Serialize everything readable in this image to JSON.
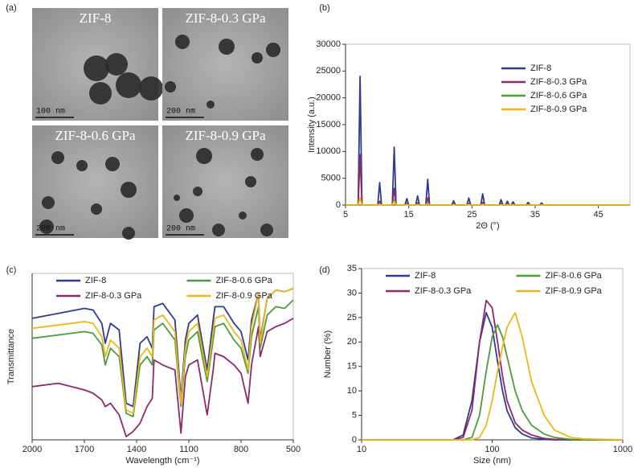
{
  "panel_labels": [
    "(a)",
    "(b)",
    "(c)",
    "(d)"
  ],
  "tem_images": [
    {
      "label": "ZIF-8",
      "scale_bar": "100 nm"
    },
    {
      "label": "ZIF-8-0.3 GPa",
      "scale_bar": "200 nm"
    },
    {
      "label": "ZIF-8-0.6 GPa",
      "scale_bar": "200 nm"
    },
    {
      "label": "ZIF-8-0.9 GPa",
      "scale_bar": "200 nm"
    }
  ],
  "chart_data": [
    {
      "type": "line",
      "x_label": "2Θ (°)",
      "y_label": "Intensity (a.u.)",
      "xlim": [
        5,
        50
      ],
      "xticks": [
        5,
        15,
        25,
        35,
        45
      ],
      "ylim": [
        0,
        30000
      ],
      "yticks": [
        0,
        5000,
        10000,
        15000,
        20000,
        25000,
        30000
      ],
      "legend": "upper right",
      "x": [
        5,
        7.0,
        7.3,
        7.6,
        10.1,
        10.4,
        10.7,
        12.4,
        12.7,
        13.0,
        14.4,
        14.7,
        15.0,
        16.1,
        16.4,
        16.7,
        17.7,
        18.0,
        18.3,
        21.8,
        22.1,
        22.4,
        24.2,
        24.5,
        24.8,
        26.4,
        26.7,
        27.0,
        29.3,
        29.6,
        29.9,
        30.3,
        30.6,
        30.9,
        31.2,
        31.5,
        31.8,
        33.6,
        33.9,
        34.2,
        35.7,
        36.0,
        36.3,
        50
      ],
      "series": [
        {
          "name": "ZIF-8",
          "color": "#2e3b8f",
          "values": [
            0,
            0,
            24000,
            0,
            0,
            4200,
            0,
            0,
            10800,
            0,
            0,
            1200,
            0,
            0,
            1700,
            0,
            0,
            4800,
            0,
            0,
            800,
            0,
            0,
            1300,
            0,
            0,
            2100,
            0,
            0,
            1000,
            0,
            0,
            700,
            0,
            0,
            600,
            0,
            0,
            500,
            0,
            0,
            400,
            0,
            0
          ]
        },
        {
          "name": "ZIF-8-0.3 GPa",
          "color": "#8b2a6b",
          "values": [
            0,
            0,
            9400,
            0,
            0,
            700,
            0,
            0,
            3100,
            0,
            0,
            300,
            0,
            0,
            400,
            0,
            0,
            1300,
            0,
            0,
            200,
            0,
            0,
            300,
            0,
            0,
            500,
            0,
            0,
            250,
            0,
            0,
            200,
            0,
            0,
            150,
            0,
            0,
            100,
            0,
            0,
            100,
            0,
            0
          ]
        },
        {
          "name": "ZIF-8-0.6 GPa",
          "color": "#4f9a3b",
          "values": [
            0,
            0,
            1300,
            0,
            0,
            200,
            0,
            0,
            1000,
            0,
            0,
            100,
            0,
            0,
            150,
            0,
            0,
            400,
            0,
            0,
            80,
            0,
            0,
            100,
            0,
            0,
            150,
            0,
            0,
            80,
            0,
            0,
            60,
            0,
            0,
            50,
            0,
            0,
            40,
            0,
            0,
            30,
            0,
            0
          ]
        },
        {
          "name": "ZIF-8-0.9 GPa",
          "color": "#e8b81e",
          "values": [
            0,
            0,
            1300,
            0,
            0,
            150,
            0,
            0,
            700,
            0,
            0,
            80,
            0,
            0,
            100,
            0,
            0,
            300,
            0,
            0,
            60,
            0,
            0,
            80,
            0,
            0,
            100,
            0,
            0,
            60,
            0,
            0,
            50,
            0,
            0,
            40,
            0,
            0,
            30,
            0,
            0,
            20,
            0,
            0
          ]
        }
      ]
    },
    {
      "type": "line",
      "x_label": "Wavelength (cm⁻¹)",
      "y_label": "Transmittance",
      "xlim": [
        2000,
        500
      ],
      "xticks": [
        2000,
        1700,
        1400,
        1100,
        800,
        500
      ],
      "ylim": [
        0,
        100
      ],
      "legend": "upper center",
      "legend_columns": 2,
      "x": [
        2000,
        1850,
        1700,
        1650,
        1600,
        1580,
        1550,
        1500,
        1460,
        1420,
        1380,
        1340,
        1310,
        1300,
        1250,
        1180,
        1145,
        1120,
        1100,
        1050,
        995,
        960,
        950,
        900,
        840,
        800,
        760,
        740,
        700,
        690,
        650,
        600,
        550,
        500
      ],
      "series": [
        {
          "name": "ZIF-8",
          "color": "#2e3b8f",
          "values": [
            73,
            76,
            79,
            78,
            70,
            58,
            70,
            66,
            22,
            20,
            58,
            62,
            55,
            80,
            82,
            72,
            25,
            60,
            70,
            75,
            42,
            72,
            80,
            80,
            70,
            65,
            48,
            72,
            88,
            60,
            85,
            90,
            89,
            91
          ]
        },
        {
          "name": "ZIF-8-0.3 GPa",
          "color": "#8b2a6b",
          "values": [
            32,
            34,
            30,
            28,
            24,
            20,
            22,
            15,
            2,
            5,
            10,
            20,
            25,
            48,
            45,
            42,
            4,
            38,
            45,
            48,
            15,
            42,
            52,
            50,
            45,
            40,
            22,
            45,
            68,
            50,
            65,
            68,
            70,
            73
          ]
        },
        {
          "name": "ZIF-8-0.6 GPa",
          "color": "#4f9a3b",
          "values": [
            61,
            63,
            65,
            64,
            57,
            45,
            55,
            50,
            16,
            14,
            45,
            50,
            45,
            66,
            70,
            60,
            20,
            50,
            60,
            65,
            35,
            60,
            68,
            70,
            60,
            55,
            40,
            62,
            80,
            55,
            75,
            80,
            79,
            84
          ]
        },
        {
          "name": "ZIF-8-0.9 GPa",
          "color": "#e8b81e",
          "values": [
            67,
            69,
            71,
            70,
            62,
            50,
            60,
            55,
            18,
            16,
            50,
            55,
            50,
            72,
            75,
            65,
            22,
            55,
            65,
            70,
            38,
            65,
            73,
            75,
            65,
            60,
            42,
            68,
            88,
            58,
            85,
            90,
            89,
            91
          ]
        }
      ]
    },
    {
      "type": "line",
      "x_label": "Size (nm)",
      "y_label": "Number (%)",
      "xscale": "log",
      "xlim": [
        10,
        1000
      ],
      "xticks": [
        10,
        100,
        1000
      ],
      "ylim": [
        0,
        35
      ],
      "yticks": [
        0,
        5,
        10,
        15,
        20,
        25,
        30,
        35
      ],
      "legend": "upper center",
      "legend_columns": 2,
      "x": [
        10,
        50,
        60,
        70,
        80,
        90,
        100,
        110,
        120,
        130,
        150,
        170,
        200,
        250,
        300,
        400,
        500,
        1000
      ],
      "series": [
        {
          "name": "ZIF-8",
          "color": "#2e3b8f",
          "values": [
            0,
            0,
            1,
            8,
            20,
            26,
            23,
            16,
            10,
            6,
            2.5,
            1.2,
            0.4,
            0.1,
            0,
            0,
            0,
            0
          ]
        },
        {
          "name": "ZIF-8-0.3 GPa",
          "color": "#8b2a6b",
          "values": [
            0,
            0,
            0.5,
            6,
            20,
            28.5,
            27,
            20,
            13,
            8,
            3.5,
            2,
            1,
            0.3,
            0.1,
            0,
            0,
            0
          ]
        },
        {
          "name": "ZIF-8-0.6 GPa",
          "color": "#4f9a3b",
          "values": [
            0,
            0,
            0,
            0.5,
            5,
            14,
            21,
            23.5,
            21,
            17,
            10,
            6,
            3,
            1.2,
            0.5,
            0.1,
            0,
            0
          ]
        },
        {
          "name": "ZIF-8-0.9 GPa",
          "color": "#e8b81e",
          "values": [
            0,
            0,
            0,
            0,
            0.5,
            3,
            8,
            14,
            19,
            23,
            26,
            21,
            12,
            5,
            2,
            0.5,
            0.2,
            0
          ]
        }
      ]
    }
  ]
}
